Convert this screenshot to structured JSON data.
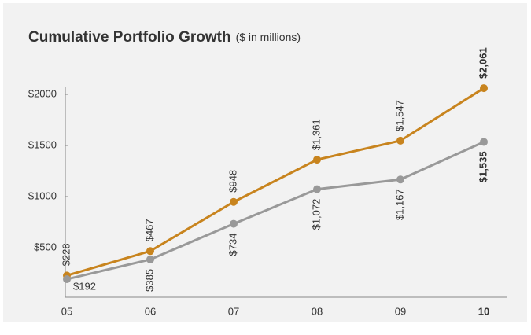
{
  "chart_data": {
    "type": "line",
    "title": "Cumulative Portfolio Growth",
    "subtitle": "($ in millions)",
    "categories": [
      "05",
      "06",
      "07",
      "08",
      "09",
      "10"
    ],
    "series": [
      {
        "color": "#c8841e",
        "values": [
          228,
          467,
          948,
          1361,
          1547,
          2061
        ],
        "value_labels": [
          "$228",
          "$467",
          "$948",
          "$1,361",
          "$1,547",
          "$2,061"
        ]
      },
      {
        "color": "#999999",
        "values": [
          192,
          385,
          734,
          1072,
          1167,
          1535
        ],
        "value_labels": [
          "$192",
          "$385",
          "$734",
          "$1,072",
          "$1,167",
          "$1,535"
        ]
      }
    ],
    "ylim": [
      0,
      2200
    ],
    "yticks": [
      {
        "value": 500,
        "label": "$500"
      },
      {
        "value": 1000,
        "label": "$1000"
      },
      {
        "value": 1500,
        "label": "$1500"
      },
      {
        "value": 2000,
        "label": "$2000"
      }
    ],
    "grid": false
  }
}
